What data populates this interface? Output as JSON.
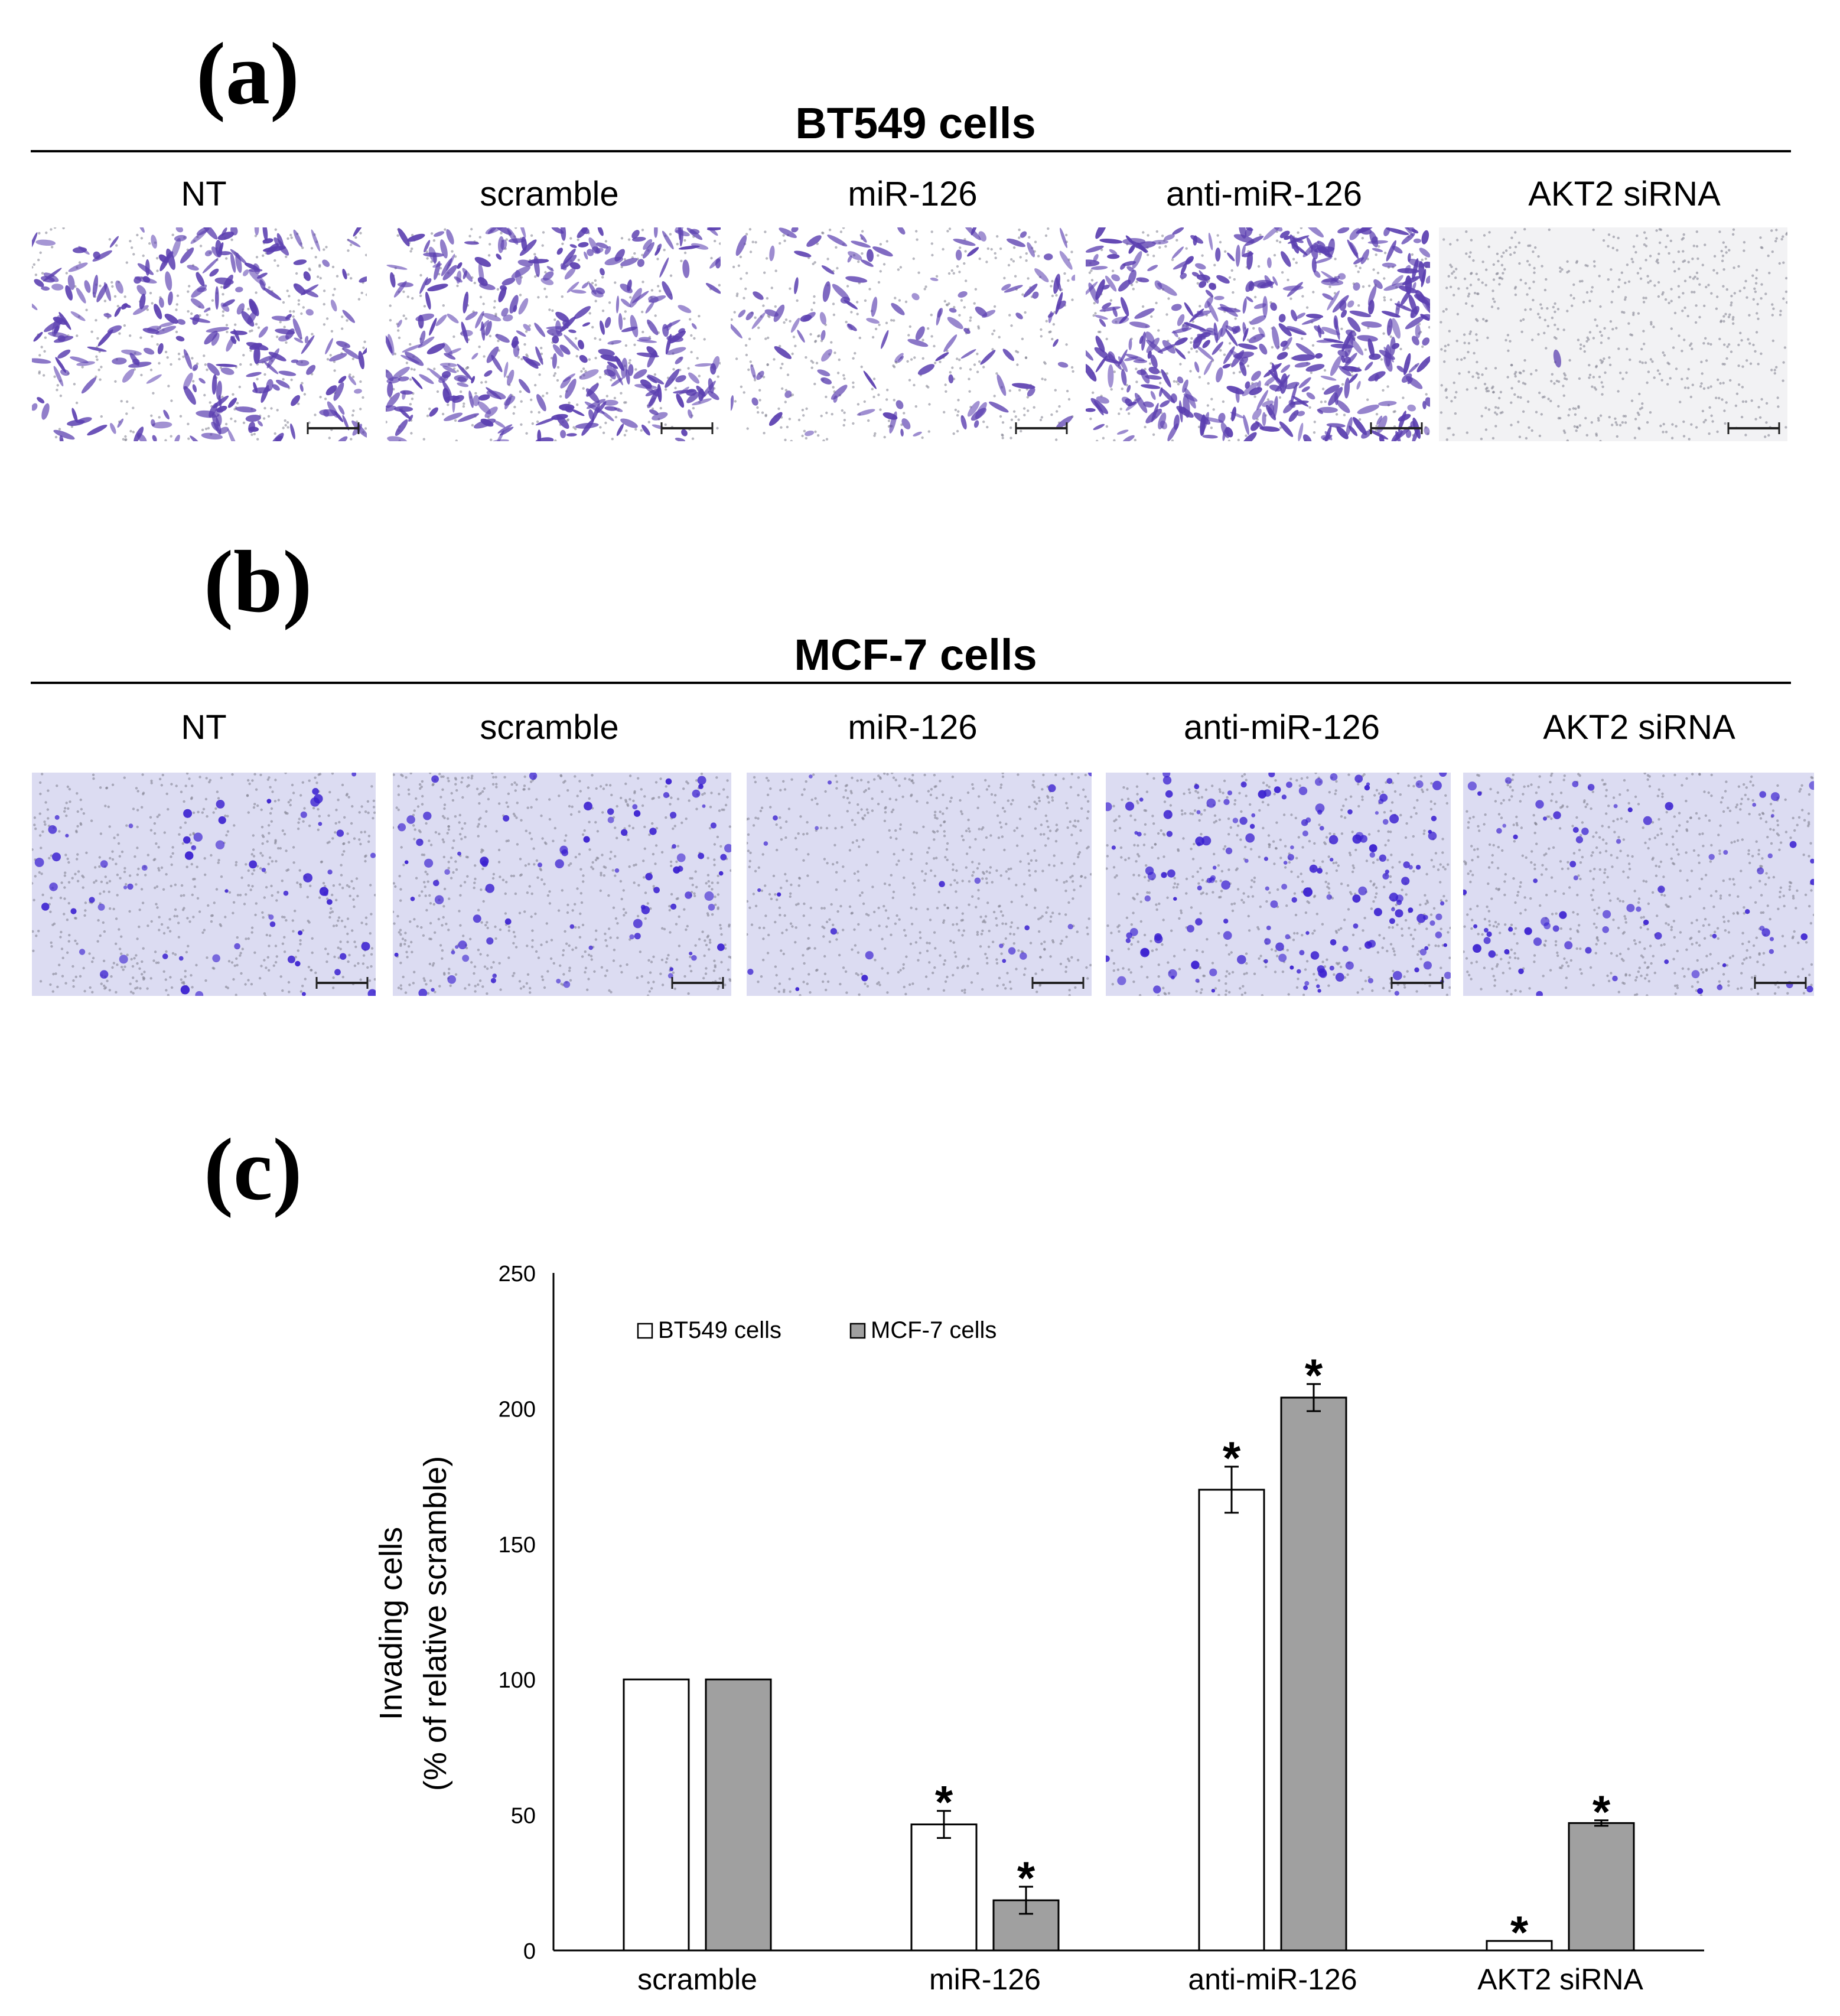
{
  "panels": {
    "a": {
      "letter": "(a)",
      "title": "BT549 cells",
      "labels": [
        "NT",
        "scramble",
        "miR-126",
        "anti-miR-126",
        "AKT2 siRNA"
      ],
      "stain_color": "#5b3fb0",
      "background_color": "#ffffff"
    },
    "b": {
      "letter": "(b)",
      "title": "MCF-7 cells",
      "labels": [
        "NT",
        "scramble",
        "miR-126",
        "anti-miR-126",
        "AKT2 siRNA"
      ],
      "stain_color": "#3a20d0",
      "background_color": "#dcdcf2"
    },
    "c": {
      "letter": "(c)"
    }
  },
  "chart_data": {
    "type": "bar",
    "categories": [
      "scramble",
      "miR-126",
      "anti-miR-126",
      "AKT2 siRNA"
    ],
    "series": [
      {
        "name": "BT549 cells",
        "values": [
          100,
          46.5,
          170,
          3.5
        ],
        "errors": [
          0,
          5,
          8.5,
          0
        ],
        "significant": [
          false,
          true,
          true,
          true
        ],
        "color": "#ffffff"
      },
      {
        "name": "MCF-7 cells",
        "values": [
          100,
          18.5,
          204,
          47
        ],
        "errors": [
          0,
          5,
          5,
          1
        ],
        "significant": [
          false,
          true,
          true,
          true
        ],
        "color": "#a0a0a0"
      }
    ],
    "significance_marker": "*",
    "ylabel_line1": "Invading cells",
    "ylabel_line2": "(% of relative scramble)",
    "ylim": [
      0,
      250
    ],
    "yticks": [
      0,
      50,
      100,
      150,
      200,
      250
    ],
    "grid": false,
    "legend_position": "top-left"
  }
}
